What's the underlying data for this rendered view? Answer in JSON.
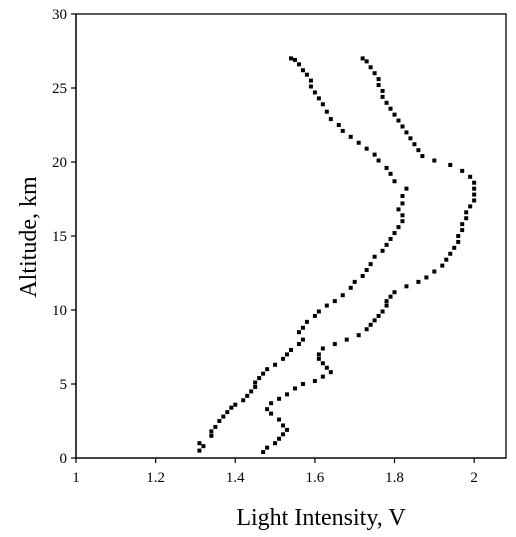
{
  "chart_data": {
    "type": "scatter",
    "title": "",
    "xlabel": "Light Intensity, V",
    "ylabel": "Altitude, km",
    "xlim": [
      1,
      2.08
    ],
    "ylim": [
      0,
      30
    ],
    "xticks": [
      1,
      1.2,
      1.4,
      1.6,
      1.8,
      2
    ],
    "xtick_labels": [
      "1",
      "1.2",
      "1.4",
      "1.6",
      "1.8",
      "2"
    ],
    "yticks": [
      0,
      5,
      10,
      15,
      20,
      25,
      30
    ],
    "ytick_labels": [
      "0",
      "5",
      "10",
      "15",
      "20",
      "25",
      "30"
    ],
    "grid": false,
    "legend": "none",
    "marker": "square",
    "marker_color": "#000000",
    "series": [
      {
        "points": [
          [
            1.31,
            0.5
          ],
          [
            1.32,
            0.8
          ],
          [
            1.31,
            1.0
          ],
          [
            1.34,
            1.5
          ],
          [
            1.34,
            1.8
          ],
          [
            1.35,
            2.1
          ],
          [
            1.36,
            2.5
          ],
          [
            1.37,
            2.8
          ],
          [
            1.38,
            3.1
          ],
          [
            1.39,
            3.4
          ],
          [
            1.4,
            3.6
          ],
          [
            1.42,
            3.9
          ],
          [
            1.43,
            4.2
          ],
          [
            1.44,
            4.5
          ],
          [
            1.45,
            4.8
          ],
          [
            1.45,
            5.1
          ],
          [
            1.46,
            5.4
          ],
          [
            1.47,
            5.7
          ],
          [
            1.48,
            6.0
          ],
          [
            1.5,
            6.3
          ],
          [
            1.52,
            6.7
          ],
          [
            1.53,
            7.0
          ],
          [
            1.54,
            7.3
          ],
          [
            1.56,
            7.7
          ],
          [
            1.57,
            8.0
          ],
          [
            1.56,
            8.5
          ],
          [
            1.57,
            8.8
          ],
          [
            1.58,
            9.2
          ],
          [
            1.6,
            9.6
          ],
          [
            1.61,
            9.9
          ],
          [
            1.63,
            10.3
          ],
          [
            1.65,
            10.6
          ],
          [
            1.67,
            11.0
          ],
          [
            1.69,
            11.5
          ],
          [
            1.7,
            11.9
          ],
          [
            1.72,
            12.3
          ],
          [
            1.73,
            12.7
          ],
          [
            1.74,
            13.1
          ],
          [
            1.75,
            13.6
          ],
          [
            1.77,
            14.0
          ],
          [
            1.78,
            14.4
          ],
          [
            1.79,
            14.8
          ],
          [
            1.8,
            15.2
          ],
          [
            1.81,
            15.6
          ],
          [
            1.82,
            16.0
          ],
          [
            1.82,
            16.4
          ],
          [
            1.81,
            16.8
          ],
          [
            1.82,
            17.2
          ],
          [
            1.82,
            17.7
          ],
          [
            1.83,
            18.2
          ],
          [
            1.8,
            18.7
          ],
          [
            1.79,
            19.2
          ],
          [
            1.78,
            19.6
          ],
          [
            1.76,
            20.1
          ],
          [
            1.75,
            20.5
          ],
          [
            1.73,
            20.9
          ],
          [
            1.71,
            21.3
          ],
          [
            1.69,
            21.7
          ],
          [
            1.67,
            22.1
          ],
          [
            1.66,
            22.5
          ],
          [
            1.64,
            22.9
          ],
          [
            1.63,
            23.4
          ],
          [
            1.62,
            23.9
          ],
          [
            1.61,
            24.3
          ],
          [
            1.6,
            24.7
          ],
          [
            1.59,
            25.1
          ],
          [
            1.59,
            25.5
          ],
          [
            1.58,
            25.9
          ],
          [
            1.57,
            26.2
          ],
          [
            1.56,
            26.6
          ],
          [
            1.55,
            26.9
          ],
          [
            1.54,
            27.0
          ]
        ]
      },
      {
        "points": [
          [
            1.47,
            0.4
          ],
          [
            1.48,
            0.7
          ],
          [
            1.5,
            1.0
          ],
          [
            1.51,
            1.3
          ],
          [
            1.52,
            1.6
          ],
          [
            1.53,
            1.9
          ],
          [
            1.52,
            2.2
          ],
          [
            1.51,
            2.6
          ],
          [
            1.49,
            3.0
          ],
          [
            1.48,
            3.3
          ],
          [
            1.49,
            3.7
          ],
          [
            1.51,
            4.0
          ],
          [
            1.53,
            4.3
          ],
          [
            1.55,
            4.7
          ],
          [
            1.57,
            5.0
          ],
          [
            1.6,
            5.2
          ],
          [
            1.62,
            5.5
          ],
          [
            1.64,
            5.8
          ],
          [
            1.63,
            6.1
          ],
          [
            1.62,
            6.4
          ],
          [
            1.61,
            6.7
          ],
          [
            1.61,
            7.0
          ],
          [
            1.62,
            7.4
          ],
          [
            1.65,
            7.7
          ],
          [
            1.68,
            8.0
          ],
          [
            1.71,
            8.3
          ],
          [
            1.73,
            8.7
          ],
          [
            1.74,
            9.0
          ],
          [
            1.75,
            9.3
          ],
          [
            1.76,
            9.6
          ],
          [
            1.77,
            9.9
          ],
          [
            1.78,
            10.3
          ],
          [
            1.78,
            10.6
          ],
          [
            1.79,
            10.9
          ],
          [
            1.8,
            11.2
          ],
          [
            1.83,
            11.6
          ],
          [
            1.86,
            11.9
          ],
          [
            1.88,
            12.2
          ],
          [
            1.9,
            12.6
          ],
          [
            1.92,
            13.0
          ],
          [
            1.93,
            13.4
          ],
          [
            1.94,
            13.8
          ],
          [
            1.95,
            14.2
          ],
          [
            1.96,
            14.6
          ],
          [
            1.96,
            15.0
          ],
          [
            1.97,
            15.4
          ],
          [
            1.97,
            15.8
          ],
          [
            1.98,
            16.2
          ],
          [
            1.98,
            16.6
          ],
          [
            1.99,
            17.0
          ],
          [
            2.0,
            17.4
          ],
          [
            2.0,
            17.8
          ],
          [
            2.0,
            18.2
          ],
          [
            2.0,
            18.6
          ],
          [
            1.99,
            19.0
          ],
          [
            1.97,
            19.4
          ],
          [
            1.94,
            19.8
          ],
          [
            1.9,
            20.1
          ],
          [
            1.87,
            20.4
          ],
          [
            1.86,
            20.8
          ],
          [
            1.85,
            21.2
          ],
          [
            1.84,
            21.6
          ],
          [
            1.83,
            22.0
          ],
          [
            1.82,
            22.4
          ],
          [
            1.81,
            22.8
          ],
          [
            1.8,
            23.2
          ],
          [
            1.79,
            23.6
          ],
          [
            1.78,
            24.0
          ],
          [
            1.77,
            24.4
          ],
          [
            1.77,
            24.8
          ],
          [
            1.76,
            25.2
          ],
          [
            1.76,
            25.6
          ],
          [
            1.75,
            26.0
          ],
          [
            1.74,
            26.4
          ],
          [
            1.73,
            26.8
          ],
          [
            1.72,
            27.0
          ]
        ]
      }
    ]
  }
}
